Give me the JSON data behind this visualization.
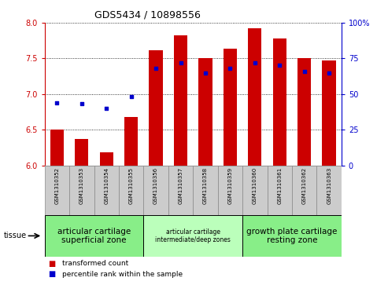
{
  "title": "GDS5434 / 10898556",
  "samples": [
    "GSM1310352",
    "GSM1310353",
    "GSM1310354",
    "GSM1310355",
    "GSM1310356",
    "GSM1310357",
    "GSM1310358",
    "GSM1310359",
    "GSM1310360",
    "GSM1310361",
    "GSM1310362",
    "GSM1310363"
  ],
  "transformed_count": [
    6.5,
    6.37,
    6.18,
    6.68,
    7.62,
    7.82,
    7.5,
    7.64,
    7.92,
    7.78,
    7.5,
    7.47
  ],
  "percentile_rank": [
    44,
    43,
    40,
    48,
    68,
    72,
    65,
    68,
    72,
    70,
    66,
    65
  ],
  "ylim_left": [
    6.0,
    8.0
  ],
  "ylim_right": [
    0,
    100
  ],
  "yticks_left": [
    6.0,
    6.5,
    7.0,
    7.5,
    8.0
  ],
  "yticks_right": [
    0,
    25,
    50,
    75,
    100
  ],
  "bar_color": "#cc0000",
  "dot_color": "#0000cc",
  "bar_width": 0.55,
  "tissue_groups": [
    {
      "label": "articular cartilage\nsuperficial zone",
      "start": 0,
      "end": 3,
      "color": "#88ee88",
      "fontsize": 7.5
    },
    {
      "label": "articular cartilage\nintermediate/deep zones",
      "start": 4,
      "end": 7,
      "color": "#bbffbb",
      "fontsize": 5.5
    },
    {
      "label": "growth plate cartilage\nresting zone",
      "start": 8,
      "end": 11,
      "color": "#88ee88",
      "fontsize": 7.5
    }
  ],
  "tissue_label": "tissue",
  "legend_red": "transformed count",
  "legend_blue": "percentile rank within the sample",
  "ylabel_left_color": "#cc0000",
  "ylabel_right_color": "#0000cc",
  "cell_color": "#cccccc",
  "cell_edge": "#888888"
}
